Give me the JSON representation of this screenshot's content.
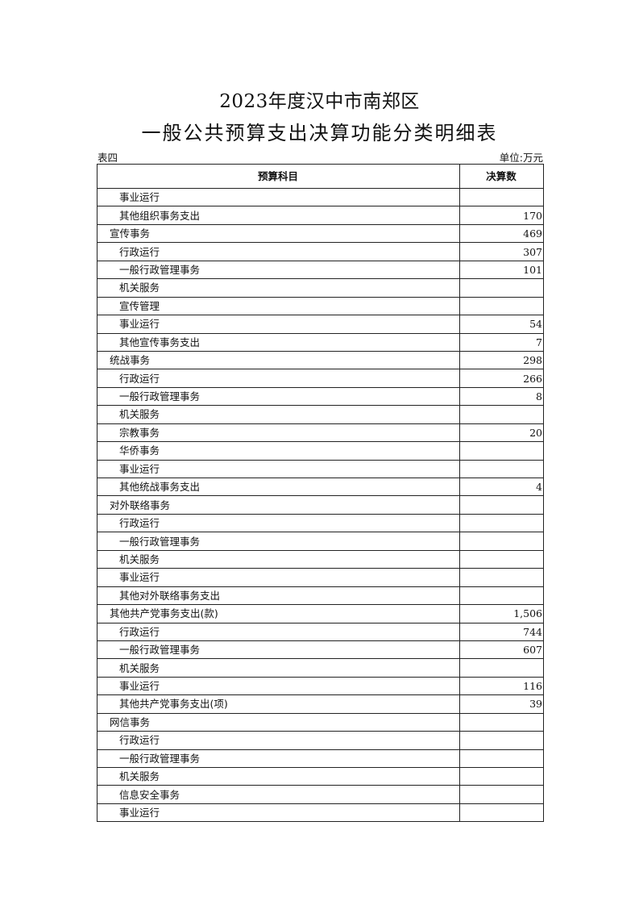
{
  "title_line1": "2023年度汉中市南郑区",
  "title_line2": "一般公共预算支出决算功能分类明细表",
  "table_number": "表四",
  "unit": "单位:万元",
  "columns": [
    "预算科目",
    "决算数"
  ],
  "rows": [
    {
      "name": "事业运行",
      "level": 2,
      "value": ""
    },
    {
      "name": "其他组织事务支出",
      "level": 2,
      "value": "170"
    },
    {
      "name": "宣传事务",
      "level": 1,
      "value": "469"
    },
    {
      "name": "行政运行",
      "level": 2,
      "value": "307"
    },
    {
      "name": "一般行政管理事务",
      "level": 2,
      "value": "101"
    },
    {
      "name": "机关服务",
      "level": 2,
      "value": ""
    },
    {
      "name": "宣传管理",
      "level": 2,
      "value": ""
    },
    {
      "name": "事业运行",
      "level": 2,
      "value": "54"
    },
    {
      "name": "其他宣传事务支出",
      "level": 2,
      "value": "7"
    },
    {
      "name": "统战事务",
      "level": 1,
      "value": "298"
    },
    {
      "name": "行政运行",
      "level": 2,
      "value": "266"
    },
    {
      "name": "一般行政管理事务",
      "level": 2,
      "value": "8"
    },
    {
      "name": "机关服务",
      "level": 2,
      "value": ""
    },
    {
      "name": "宗教事务",
      "level": 2,
      "value": "20"
    },
    {
      "name": "华侨事务",
      "level": 2,
      "value": ""
    },
    {
      "name": "事业运行",
      "level": 2,
      "value": ""
    },
    {
      "name": "其他统战事务支出",
      "level": 2,
      "value": "4"
    },
    {
      "name": "对外联络事务",
      "level": 1,
      "value": ""
    },
    {
      "name": "行政运行",
      "level": 2,
      "value": ""
    },
    {
      "name": "一般行政管理事务",
      "level": 2,
      "value": ""
    },
    {
      "name": "机关服务",
      "level": 2,
      "value": ""
    },
    {
      "name": "事业运行",
      "level": 2,
      "value": ""
    },
    {
      "name": "其他对外联络事务支出",
      "level": 2,
      "value": ""
    },
    {
      "name": "其他共产党事务支出(款)",
      "level": 1,
      "value": "1,506"
    },
    {
      "name": "行政运行",
      "level": 2,
      "value": "744"
    },
    {
      "name": "一般行政管理事务",
      "level": 2,
      "value": "607"
    },
    {
      "name": "机关服务",
      "level": 2,
      "value": ""
    },
    {
      "name": "事业运行",
      "level": 2,
      "value": "116"
    },
    {
      "name": "其他共产党事务支出(项)",
      "level": 2,
      "value": "39"
    },
    {
      "name": "网信事务",
      "level": 1,
      "value": ""
    },
    {
      "name": "行政运行",
      "level": 2,
      "value": ""
    },
    {
      "name": "一般行政管理事务",
      "level": 2,
      "value": ""
    },
    {
      "name": "机关服务",
      "level": 2,
      "value": ""
    },
    {
      "name": "信息安全事务",
      "level": 2,
      "value": ""
    },
    {
      "name": "事业运行",
      "level": 2,
      "value": ""
    }
  ]
}
